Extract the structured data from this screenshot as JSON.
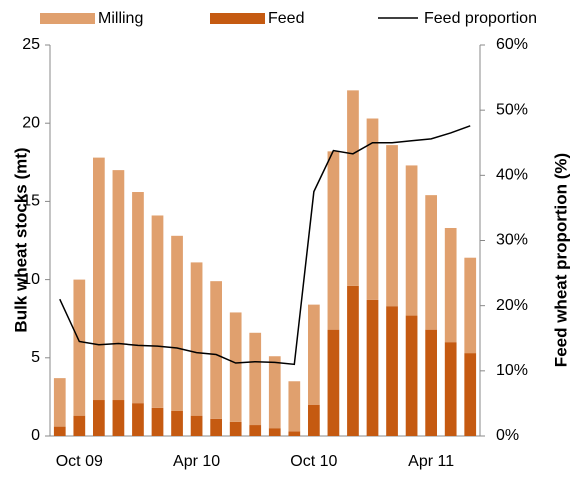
{
  "chart_data": {
    "type": "bar",
    "categories": [
      null,
      "Oct 09",
      null,
      null,
      null,
      null,
      null,
      "Apr 10",
      null,
      null,
      null,
      null,
      null,
      "Oct 10",
      null,
      null,
      null,
      null,
      null,
      "Apr 11",
      null,
      null
    ],
    "series": [
      {
        "name": "Feed",
        "color": "#c55a11",
        "values": [
          0.6,
          1.3,
          2.3,
          2.3,
          2.1,
          1.8,
          1.6,
          1.3,
          1.1,
          0.9,
          0.7,
          0.5,
          0.3,
          2.0,
          6.8,
          9.6,
          8.7,
          8.3,
          7.7,
          6.8,
          6.0,
          5.3
        ]
      },
      {
        "name": "Milling",
        "color": "#e0a06e",
        "values": [
          3.1,
          8.7,
          15.5,
          14.7,
          13.5,
          12.3,
          11.2,
          9.8,
          8.8,
          7.0,
          5.9,
          4.6,
          3.2,
          6.4,
          11.4,
          12.5,
          11.6,
          10.3,
          9.6,
          8.6,
          7.3,
          6.1
        ]
      },
      {
        "name": "Feed proportion",
        "color": "#000000",
        "type": "line",
        "axis": "y2",
        "values": [
          21,
          14.5,
          14,
          14.2,
          13.9,
          13.8,
          13.5,
          12.8,
          12.5,
          11.2,
          11.4,
          11.3,
          11,
          37.5,
          43.8,
          43.3,
          45,
          45,
          45.3,
          45.6,
          46.5,
          47.6
        ]
      }
    ],
    "ylabel": "Bulk wheat stocks (mt)",
    "y2label": "Feed wheat proportion (%)",
    "ylim": [
      0,
      25
    ],
    "yticks": [
      0,
      5,
      10,
      15,
      20,
      25
    ],
    "y2lim": [
      0,
      60
    ],
    "y2ticks": [
      {
        "value": 0,
        "label": "0%"
      },
      {
        "value": 10,
        "label": "10%"
      },
      {
        "value": 20,
        "label": "20%"
      },
      {
        "value": 30,
        "label": "30%"
      },
      {
        "value": 40,
        "label": "40%"
      },
      {
        "value": 50,
        "label": "50%"
      },
      {
        "value": 60,
        "label": "60%"
      }
    ],
    "grid": false,
    "legend": "top"
  }
}
